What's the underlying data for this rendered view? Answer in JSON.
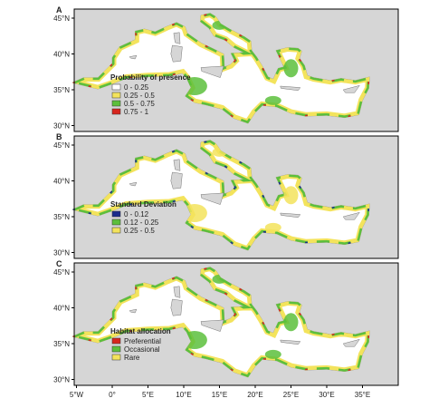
{
  "panels": [
    {
      "label": "A",
      "legend": {
        "title": "Probability of presence",
        "items": [
          "0 - 0.25",
          "0.25 - 0.5",
          "0.5 - 0.75",
          "0.75 - 1"
        ]
      }
    },
    {
      "label": "B",
      "legend": {
        "title": "Standard Deviation",
        "items": [
          "0 - 0.12",
          "0.12 - 0.25",
          "0.25 - 0.5"
        ]
      }
    },
    {
      "label": "C",
      "legend": {
        "title": "Habitat allocation",
        "items": [
          "Preferential",
          "Occasional",
          "Rare"
        ]
      }
    }
  ],
  "lat_labels": [
    "45°N",
    "40°N",
    "35°N",
    "30°N"
  ],
  "lon_labels": [
    "5°W",
    "0°",
    "5°E",
    "10°E",
    "15°E",
    "20°E",
    "25°E",
    "30°E",
    "35°E"
  ]
}
